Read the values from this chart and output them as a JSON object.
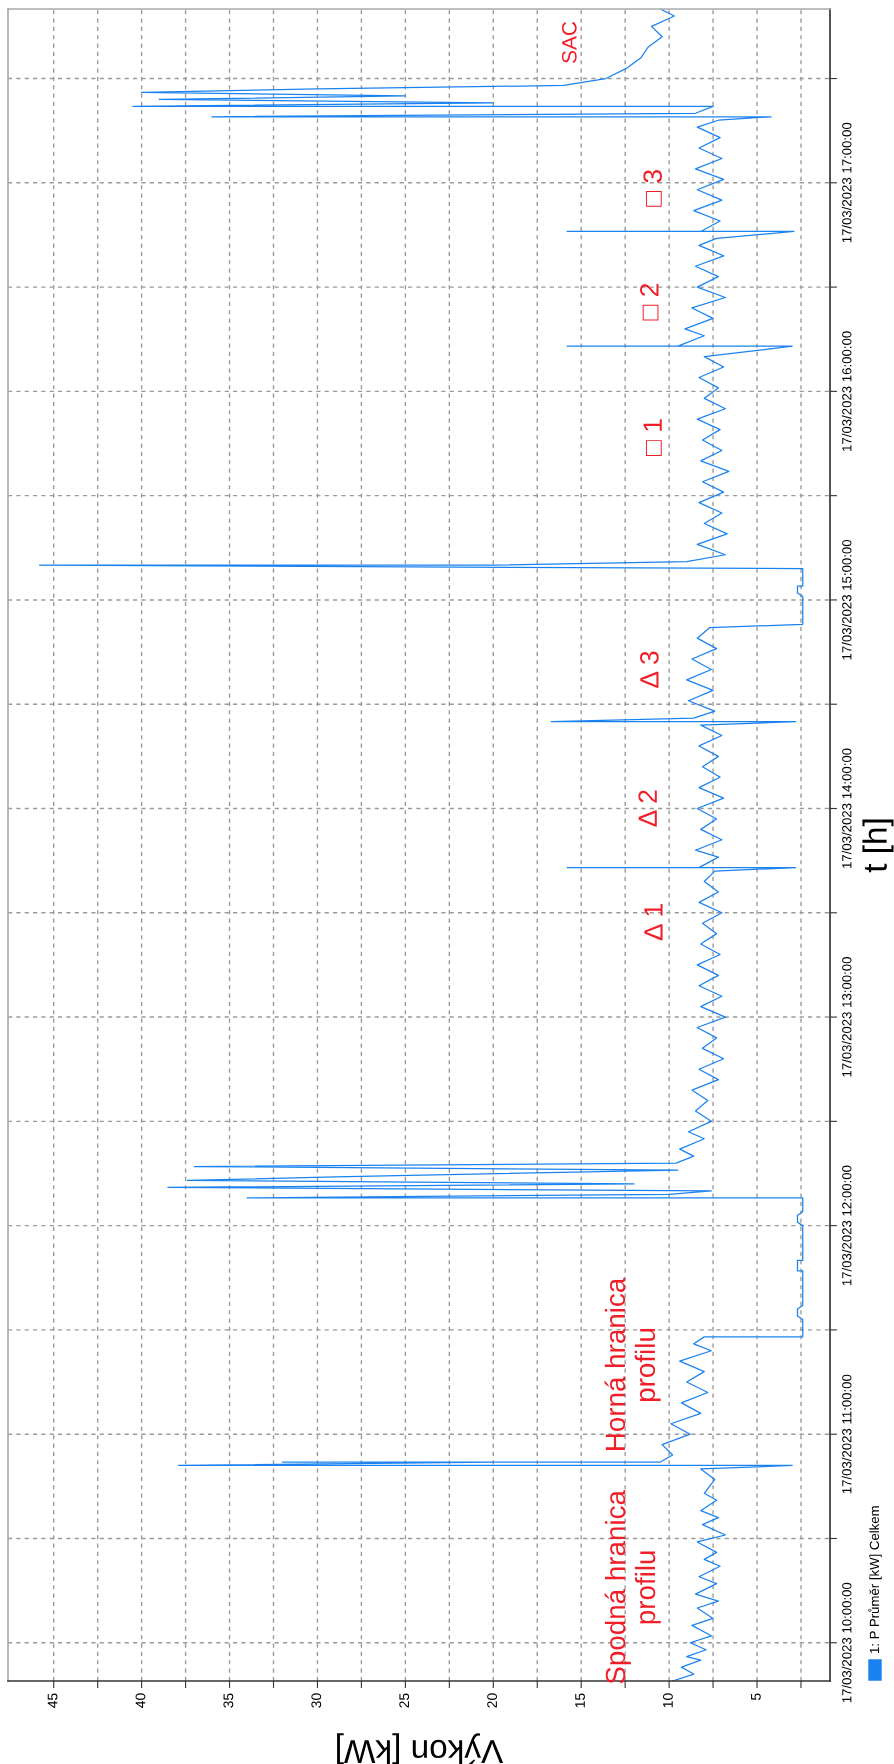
{
  "chart_data": {
    "type": "line",
    "orientation": "horizontal",
    "xlabel": "Výkon [kW]",
    "ylabel": "t [h]",
    "x": [
      "2023-03-17T09:49",
      "2023-03-17T09:51",
      "2023-03-17T09:53",
      "2023-03-17T09:55",
      "2023-03-17T09:56",
      "2023-03-17T09:58",
      "2023-03-17T10:00",
      "2023-03-17T10:02",
      "2023-03-17T10:05",
      "2023-03-17T10:07",
      "2023-03-17T10:10",
      "2023-03-17T10:12",
      "2023-03-17T10:14",
      "2023-03-17T10:17",
      "2023-03-17T10:19",
      "2023-03-17T10:22",
      "2023-03-17T10:24",
      "2023-03-17T10:26",
      "2023-03-17T10:29",
      "2023-03-17T10:31",
      "2023-03-17T10:34",
      "2023-03-17T10:36",
      "2023-03-17T10:38",
      "2023-03-17T10:41",
      "2023-03-17T10:43",
      "2023-03-17T10:47",
      "2023-03-17T10:50",
      "2023-03-17T10:51",
      "2023-03-17T10:51",
      "2023-03-17T10:52",
      "2023-03-17T10:52",
      "2023-03-17T10:52",
      "2023-03-17T10:54",
      "2023-03-17T10:57",
      "2023-03-17T11:00",
      "2023-03-17T11:03",
      "2023-03-17T11:06",
      "2023-03-17T11:09",
      "2023-03-17T11:12",
      "2023-03-17T11:15",
      "2023-03-17T11:18",
      "2023-03-17T11:21",
      "2023-03-17T11:24",
      "2023-03-17T11:26",
      "2023-03-17T11:28",
      "2023-03-17T11:28",
      "2023-03-17T11:33",
      "2023-03-17T11:34",
      "2023-03-17T11:36",
      "2023-03-17T11:37",
      "2023-03-17T11:47",
      "2023-03-17T11:47",
      "2023-03-17T11:50",
      "2023-03-17T11:50",
      "2023-03-17T12:00",
      "2023-03-17T12:01",
      "2023-03-17T12:03",
      "2023-03-17T12:04",
      "2023-03-17T12:08",
      "2023-03-17T12:08",
      "2023-03-17T12:09",
      "2023-03-17T12:10",
      "2023-03-17T12:11",
      "2023-03-17T12:12",
      "2023-03-17T12:13",
      "2023-03-17T12:14",
      "2023-03-17T12:16",
      "2023-03-17T12:17",
      "2023-03-17T12:18",
      "2023-03-17T12:20",
      "2023-03-17T12:22",
      "2023-03-17T12:25",
      "2023-03-17T12:27",
      "2023-03-17T12:30",
      "2023-03-17T12:33",
      "2023-03-17T12:36",
      "2023-03-17T12:39",
      "2023-03-17T12:42",
      "2023-03-17T12:45",
      "2023-03-17T12:48",
      "2023-03-17T12:51",
      "2023-03-17T12:54",
      "2023-03-17T12:57",
      "2023-03-17T13:00",
      "2023-03-17T13:03",
      "2023-03-17T13:06",
      "2023-03-17T13:09",
      "2023-03-17T13:12",
      "2023-03-17T13:15",
      "2023-03-17T13:18",
      "2023-03-17T13:21",
      "2023-03-17T13:24",
      "2023-03-17T13:27",
      "2023-03-17T13:30",
      "2023-03-17T13:33",
      "2023-03-17T13:36",
      "2023-03-17T13:39",
      "2023-03-17T13:42",
      "2023-03-17T13:43",
      "2023-03-17T13:43",
      "2023-03-17T13:43",
      "2023-03-17T13:46",
      "2023-03-17T13:48",
      "2023-03-17T13:51",
      "2023-03-17T13:54",
      "2023-03-17T13:57",
      "2023-03-17T14:00",
      "2023-03-17T14:03",
      "2023-03-17T14:06",
      "2023-03-17T14:09",
      "2023-03-17T14:12",
      "2023-03-17T14:15",
      "2023-03-17T14:18",
      "2023-03-17T14:21",
      "2023-03-17T14:24",
      "2023-03-17T14:25",
      "2023-03-17T14:25",
      "2023-03-17T14:26",
      "2023-03-17T14:28",
      "2023-03-17T14:31",
      "2023-03-17T14:34",
      "2023-03-17T14:37",
      "2023-03-17T14:40",
      "2023-03-17T14:43",
      "2023-03-17T14:46",
      "2023-03-17T14:49",
      "2023-03-17T14:52",
      "2023-03-17T14:53",
      "2023-03-17T15:01",
      "2023-03-17T15:02",
      "2023-03-17T15:04",
      "2023-03-17T15:04",
      "2023-03-17T15:09",
      "2023-03-17T15:10",
      "2023-03-17T15:10",
      "2023-03-17T15:11",
      "2023-03-17T15:13",
      "2023-03-17T15:16",
      "2023-03-17T15:19",
      "2023-03-17T15:22",
      "2023-03-17T15:25",
      "2023-03-17T15:28",
      "2023-03-17T15:31",
      "2023-03-17T15:34",
      "2023-03-17T15:37",
      "2023-03-17T15:40",
      "2023-03-17T15:43",
      "2023-03-17T15:46",
      "2023-03-17T15:49",
      "2023-03-17T15:52",
      "2023-03-17T15:55",
      "2023-03-17T15:58",
      "2023-03-17T16:01",
      "2023-03-17T16:04",
      "2023-03-17T16:07",
      "2023-03-17T16:10",
      "2023-03-17T16:13",
      "2023-03-17T16:13",
      "2023-03-17T16:13",
      "2023-03-17T16:16",
      "2023-03-17T16:18",
      "2023-03-17T16:21",
      "2023-03-17T16:24",
      "2023-03-17T16:27",
      "2023-03-17T16:30",
      "2023-03-17T16:33",
      "2023-03-17T16:36",
      "2023-03-17T16:39",
      "2023-03-17T16:42",
      "2023-03-17T16:44",
      "2023-03-17T16:46",
      "2023-03-17T16:46",
      "2023-03-17T16:46",
      "2023-03-17T16:49",
      "2023-03-17T16:52",
      "2023-03-17T16:55",
      "2023-03-17T16:58",
      "2023-03-17T17:01",
      "2023-03-17T17:04",
      "2023-03-17T17:07",
      "2023-03-17T17:10",
      "2023-03-17T17:13",
      "2023-03-17T17:16",
      "2023-03-17T17:18",
      "2023-03-17T17:19",
      "2023-03-17T17:19",
      "2023-03-17T17:20",
      "2023-03-17T17:22",
      "2023-03-17T17:22",
      "2023-03-17T17:23",
      "2023-03-17T17:24",
      "2023-03-17T17:25",
      "2023-03-17T17:26",
      "2023-03-17T17:27",
      "2023-03-17T17:28",
      "2023-03-17T17:30",
      "2023-03-17T17:33",
      "2023-03-17T17:36",
      "2023-03-17T17:39",
      "2023-03-17T17:42",
      "2023-03-17T17:45",
      "2023-03-17T17:48",
      "2023-03-17T17:50"
    ],
    "series": [
      {
        "name": "1: P Průměr [kW] Celkem",
        "color": "#1a82f0",
        "values": [
          9.8,
          8.6,
          9.3,
          8.2,
          9.0,
          7.9,
          8.8,
          7.6,
          8.7,
          7.5,
          8.4,
          7.2,
          8.5,
          7.3,
          8.3,
          7.1,
          8.0,
          7.3,
          8.4,
          6.8,
          8.1,
          7.2,
          8.2,
          7.3,
          8.0,
          7.4,
          8.2,
          3.0,
          37.9,
          20,
          32,
          10.5,
          9.8,
          10.4,
          8.8,
          9.9,
          8.2,
          9.3,
          7.8,
          9.0,
          8.0,
          9.4,
          7.6,
          8.6,
          8.0,
          2.4,
          2.4,
          2.7,
          2.7,
          2.4,
          2.4,
          2.7,
          2.7,
          2.4,
          2.4,
          2.7,
          2.7,
          2.4,
          2.4,
          34,
          10,
          7.6,
          38.5,
          12,
          37.4,
          29,
          9.5,
          37,
          9.6,
          8.6,
          9.4,
          8.0,
          8.9,
          7.6,
          8.5,
          7.8,
          8.7,
          7.2,
          8.3,
          6.9,
          8.1,
          7.3,
          8.4,
          6.8,
          8.2,
          7.0,
          8.3,
          7.2,
          8.4,
          7.1,
          8.2,
          7.3,
          8.1,
          7.0,
          8.3,
          7.2,
          8.0,
          7.4,
          2.8,
          15.8,
          8.3,
          7.2,
          8.5,
          7.0,
          8.2,
          7.3,
          8.4,
          6.9,
          8.3,
          7.1,
          8.1,
          7.2,
          8.3,
          7.0,
          8.2,
          2.8,
          16.7,
          8.6,
          7.4,
          8.9,
          7.5,
          9.0,
          7.6,
          8.7,
          7.3,
          8.4,
          7.7,
          2.4,
          2.4,
          2.7,
          2.7,
          2.4,
          2.4,
          45.8,
          20,
          9.0,
          6.8,
          8.4,
          6.7,
          8.0,
          7.0,
          8.3,
          6.9,
          8.1,
          6.6,
          8.2,
          7.0,
          8.1,
          7.1,
          8.4,
          6.8,
          8.0,
          7.2,
          8.3,
          6.9,
          8.0,
          3.0,
          15.8,
          9.5,
          8.0,
          9.1,
          7.5,
          8.7,
          6.8,
          8.4,
          7.2,
          8.5,
          6.9,
          8.3,
          7.3,
          2.9,
          15.8,
          8.2,
          7.1,
          8.6,
          7.0,
          8.4,
          6.9,
          8.5,
          7.0,
          8.3,
          7.1,
          8.4,
          7.2,
          4.2,
          36,
          8.5,
          7.5,
          40.5,
          20,
          39,
          25,
          40,
          30,
          16,
          13.6,
          12.4,
          11.6,
          11.2,
          10.4,
          11.0,
          9.7,
          10.5
        ]
      }
    ],
    "xlim": [
      47.6,
      0.85
    ],
    "xticks": [
      {
        "value": 2.5,
        "label": null
      },
      5,
      {
        "value": 7.5,
        "label": null
      },
      10,
      {
        "value": 12.5,
        "label": null
      },
      15,
      {
        "value": 17.5,
        "label": null
      },
      20,
      {
        "value": 22.5,
        "label": null
      },
      25,
      {
        "value": 27.5,
        "label": null
      },
      30,
      {
        "value": 32.5,
        "label": null
      },
      35,
      {
        "value": 37.5,
        "label": null
      },
      40,
      {
        "value": 42.5,
        "label": null
      },
      45
    ],
    "ylim": [
      "2023-03-17T09:49",
      "2023-03-17T17:50"
    ],
    "yticks": [
      {
        "value": "2023-03-17T10:00",
        "label": "17/03/2023 10:00:00"
      },
      {
        "value": "2023-03-17T10:30",
        "label": null
      },
      {
        "value": "2023-03-17T11:00",
        "label": "17/03/2023 11:00:00"
      },
      {
        "value": "2023-03-17T11:30",
        "label": null
      },
      {
        "value": "2023-03-17T12:00",
        "label": "17/03/2023 12:00:00"
      },
      {
        "value": "2023-03-17T12:30",
        "label": null
      },
      {
        "value": "2023-03-17T13:00",
        "label": "17/03/2023 13:00:00"
      },
      {
        "value": "2023-03-17T13:30",
        "label": null
      },
      {
        "value": "2023-03-17T14:00",
        "label": "17/03/2023 14:00:00"
      },
      {
        "value": "2023-03-17T14:30",
        "label": null
      },
      {
        "value": "2023-03-17T15:00",
        "label": "17/03/2023 15:00:00"
      },
      {
        "value": "2023-03-17T15:30",
        "label": null
      },
      {
        "value": "2023-03-17T16:00",
        "label": "17/03/2023 16:00:00"
      },
      {
        "value": "2023-03-17T16:30",
        "label": null
      },
      {
        "value": "2023-03-17T17:00",
        "label": "17/03/2023 17:00:00"
      },
      {
        "value": "2023-03-17T17:30",
        "label": null
      }
    ],
    "grid": true,
    "legend": "bottom right",
    "annotations": [
      "Spodná hranica\nprofilu",
      "Horná hranica\nprofilu",
      "Δ 1",
      "Δ 2",
      "Δ 3",
      "□ 1",
      "□ 2",
      "□ 3",
      "SAC"
    ]
  }
}
